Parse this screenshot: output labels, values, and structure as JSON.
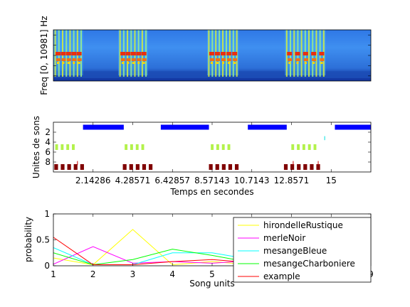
{
  "chart_data": [
    {
      "type": "heatmap",
      "title": "",
      "xlabel": "",
      "ylabel": "Freq [0, 10981] Hz",
      "xlim": [
        0,
        17.1429
      ],
      "grid": false,
      "colormap": "jet",
      "bursts_seconds": [
        [
          0,
          1.6
        ],
        [
          3.5,
          5.1
        ],
        [
          8.3,
          10.0
        ],
        [
          12.5,
          14.7
        ]
      ]
    },
    {
      "type": "scatter",
      "title": "",
      "xlabel": "Temps en secondes",
      "ylabel": "Unites de sons",
      "xlim": [
        0,
        17.1429
      ],
      "ylim": [
        10,
        0
      ],
      "yticks": [
        "2",
        "4",
        "6",
        "8"
      ],
      "xticks": [
        "2.14286",
        "4.28571",
        "6.42857",
        "8.57143",
        "10.7143",
        "12.8571",
        "15"
      ],
      "xtick_values": [
        2.14286,
        4.28571,
        6.42857,
        8.57143,
        10.7143,
        12.8571,
        15
      ],
      "bands": [
        {
          "unit": 1,
          "color": "#0000ff",
          "segments": [
            [
              1.6,
              3.8
            ],
            [
              5.8,
              8.4
            ],
            [
              10.5,
              12.6
            ],
            [
              15.2,
              17.1429
            ]
          ]
        },
        {
          "unit": 5,
          "color": "#b3f24b",
          "segments": [
            [
              0.1,
              0.25
            ],
            [
              0.4,
              0.55
            ],
            [
              0.7,
              0.85
            ],
            [
              1.0,
              1.15
            ],
            [
              3.85,
              4.0
            ],
            [
              4.15,
              4.3
            ],
            [
              4.45,
              4.6
            ],
            [
              4.75,
              4.9
            ],
            [
              8.5,
              8.65
            ],
            [
              8.8,
              8.95
            ],
            [
              9.1,
              9.25
            ],
            [
              9.4,
              9.55
            ],
            [
              12.85,
              13.0
            ],
            [
              13.15,
              13.3
            ],
            [
              13.45,
              13.6
            ],
            [
              13.75,
              13.9
            ],
            [
              14.05,
              14.2
            ]
          ]
        },
        {
          "unit": 9,
          "color": "#800000",
          "segments": [
            [
              0.05,
              0.25
            ],
            [
              0.4,
              0.6
            ],
            [
              0.75,
              0.95
            ],
            [
              1.1,
              1.3
            ],
            [
              1.45,
              1.65
            ],
            [
              3.75,
              3.95
            ],
            [
              4.1,
              4.3
            ],
            [
              4.45,
              4.65
            ],
            [
              4.8,
              5.0
            ],
            [
              5.15,
              5.35
            ],
            [
              8.4,
              8.6
            ],
            [
              8.75,
              8.95
            ],
            [
              9.1,
              9.3
            ],
            [
              9.45,
              9.65
            ],
            [
              9.8,
              10.0
            ],
            [
              12.45,
              12.65
            ],
            [
              12.8,
              13.0
            ],
            [
              13.15,
              13.35
            ],
            [
              13.5,
              13.7
            ],
            [
              13.85,
              14.05
            ],
            [
              14.2,
              14.4
            ]
          ]
        }
      ],
      "ticks_red": [
        1.3,
        12.95,
        14.3
      ],
      "tick_cyan": 14.65
    },
    {
      "type": "line",
      "title": "",
      "xlabel": "Song units",
      "ylabel": "probability",
      "xlim": [
        1,
        9
      ],
      "ylim": [
        0,
        1
      ],
      "xticks": [
        "1",
        "2",
        "3",
        "4",
        "5",
        "6",
        "7",
        "8",
        "9"
      ],
      "yticks": [
        "0",
        "0.5",
        "1"
      ],
      "legend_position": "top-right",
      "x": [
        1,
        2,
        3,
        4,
        5,
        6,
        7,
        8,
        9
      ],
      "series": [
        {
          "name": "hirondelleRustique",
          "color": "#ffff00",
          "values": [
            0.15,
            0.02,
            0.7,
            0.02,
            0.08,
            0.02,
            0.01,
            0.01,
            0.01
          ]
        },
        {
          "name": "merleNoir",
          "color": "#ff00ff",
          "values": [
            0.03,
            0.37,
            0.05,
            0.08,
            0.05,
            0.1,
            0.04,
            0.1,
            0.22
          ]
        },
        {
          "name": "mesangeBleue",
          "color": "#00ffff",
          "values": [
            0.35,
            0.02,
            0.02,
            0.25,
            0.25,
            0.12,
            0.06,
            0.05,
            0.05
          ]
        },
        {
          "name": "mesangeCharboniere",
          "color": "#00ff00",
          "values": [
            0.25,
            0.02,
            0.12,
            0.32,
            0.2,
            0.06,
            0.02,
            0.04,
            0.27
          ]
        },
        {
          "name": "example",
          "color": "#ff0000",
          "values": [
            0.55,
            0.02,
            0.02,
            0.08,
            0.12,
            0.06,
            0.02,
            0.04,
            0.15
          ]
        }
      ]
    }
  ]
}
